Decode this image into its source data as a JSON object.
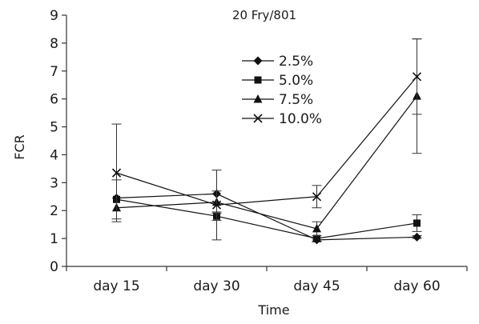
{
  "chart_data": {
    "type": "line",
    "title": "20 Fry/801",
    "xlabel": "Time",
    "ylabel": "FCR",
    "categories": [
      "day 15",
      "day 30",
      "day 45",
      "day 60"
    ],
    "ylim": [
      0,
      9
    ],
    "yticks": [
      0,
      1,
      2,
      3,
      4,
      5,
      6,
      7,
      8,
      9
    ],
    "grid": false,
    "legend_position": "top-right",
    "series": [
      {
        "name": "2.5%",
        "marker": "diamond",
        "values": [
          2.45,
          2.6,
          0.95,
          1.05
        ],
        "errors": [
          null,
          null,
          0.07,
          0.05
        ]
      },
      {
        "name": "5.0%",
        "marker": "square",
        "values": [
          2.4,
          1.8,
          1.0,
          1.55
        ],
        "errors": [
          0.7,
          0.15,
          0.1,
          0.3
        ]
      },
      {
        "name": "7.5%",
        "marker": "triangle",
        "values": [
          2.1,
          2.3,
          1.35,
          6.1
        ],
        "errors": [
          null,
          0.4,
          0.25,
          2.05
        ]
      },
      {
        "name": "10.0%",
        "marker": "x",
        "values": [
          3.35,
          2.2,
          2.5,
          6.8
        ],
        "errors": [
          1.75,
          1.25,
          0.4,
          1.35
        ]
      }
    ]
  }
}
